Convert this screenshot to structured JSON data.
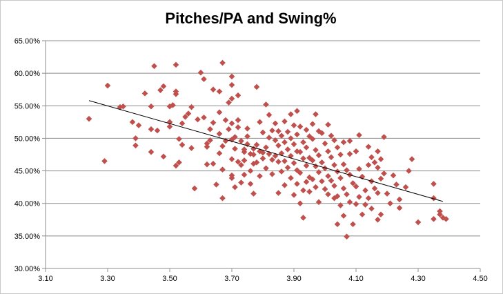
{
  "chart_data": {
    "type": "scatter",
    "title": "Pitches/PA and Swing%",
    "xlabel": "",
    "ylabel": "",
    "xlim": [
      3.1,
      4.5
    ],
    "ylim": [
      30.0,
      65.0
    ],
    "x_ticks": [
      "3.10",
      "3.30",
      "3.50",
      "3.70",
      "3.90",
      "4.10",
      "4.30",
      "4.50"
    ],
    "y_ticks": [
      "30.00%",
      "35.00%",
      "40.00%",
      "45.00%",
      "50.00%",
      "55.00%",
      "60.00%",
      "65.00%"
    ],
    "grid": "horizontal",
    "legend": "none",
    "marker_color": "#c0504d",
    "trendline": {
      "x": [
        3.24,
        4.38
      ],
      "y": [
        55.8,
        40.3
      ],
      "color": "#000000"
    },
    "series": [
      {
        "points": [
          [
            3.24,
            53.0
          ],
          [
            3.29,
            46.5
          ],
          [
            3.3,
            58.1
          ],
          [
            3.34,
            54.8
          ],
          [
            3.35,
            54.9
          ],
          [
            3.38,
            52.5
          ],
          [
            3.39,
            48.9
          ],
          [
            3.39,
            50.0
          ],
          [
            3.4,
            52.0
          ],
          [
            3.42,
            56.9
          ],
          [
            3.44,
            54.9
          ],
          [
            3.44,
            51.4
          ],
          [
            3.44,
            47.9
          ],
          [
            3.45,
            61.1
          ],
          [
            3.46,
            51.2
          ],
          [
            3.47,
            57.4
          ],
          [
            3.48,
            58.0
          ],
          [
            3.48,
            47.2
          ],
          [
            3.5,
            52.5
          ],
          [
            3.5,
            51.8
          ],
          [
            3.5,
            54.9
          ],
          [
            3.51,
            55.1
          ],
          [
            3.52,
            61.3
          ],
          [
            3.52,
            57.2
          ],
          [
            3.52,
            56.8
          ],
          [
            3.52,
            45.8
          ],
          [
            3.53,
            46.3
          ],
          [
            3.53,
            49.9
          ],
          [
            3.54,
            52.3
          ],
          [
            3.54,
            49.0
          ],
          [
            3.55,
            53.3
          ],
          [
            3.56,
            53.8
          ],
          [
            3.57,
            54.8
          ],
          [
            3.57,
            48.5
          ],
          [
            3.58,
            42.3
          ],
          [
            3.59,
            52.9
          ],
          [
            3.6,
            60.1
          ],
          [
            3.61,
            59.1
          ],
          [
            3.61,
            53.2
          ],
          [
            3.62,
            49.2
          ],
          [
            3.62,
            48.7
          ],
          [
            3.62,
            46.0
          ],
          [
            3.63,
            51.4
          ],
          [
            3.63,
            49.7
          ],
          [
            3.64,
            57.5
          ],
          [
            3.64,
            52.4
          ],
          [
            3.64,
            46.1
          ],
          [
            3.65,
            42.9
          ],
          [
            3.66,
            57.2
          ],
          [
            3.66,
            54.0
          ],
          [
            3.66,
            50.7
          ],
          [
            3.66,
            47.7
          ],
          [
            3.67,
            61.6
          ],
          [
            3.67,
            48.8
          ],
          [
            3.67,
            45.2
          ],
          [
            3.67,
            40.8
          ],
          [
            3.68,
            52.8
          ],
          [
            3.68,
            49.6
          ],
          [
            3.69,
            55.5
          ],
          [
            3.69,
            51.4
          ],
          [
            3.7,
            59.5
          ],
          [
            3.7,
            58.2
          ],
          [
            3.7,
            56.1
          ],
          [
            3.7,
            52.3
          ],
          [
            3.7,
            49.8
          ],
          [
            3.7,
            46.8
          ],
          [
            3.7,
            44.3
          ],
          [
            3.7,
            43.9
          ],
          [
            3.71,
            50.2
          ],
          [
            3.71,
            48.4
          ],
          [
            3.71,
            42.5
          ],
          [
            3.72,
            56.6
          ],
          [
            3.72,
            52.8
          ],
          [
            3.72,
            51.7
          ],
          [
            3.72,
            46.4
          ],
          [
            3.73,
            49.6
          ],
          [
            3.73,
            45.9
          ],
          [
            3.73,
            43.2
          ],
          [
            3.74,
            48.3
          ],
          [
            3.74,
            47.9
          ],
          [
            3.74,
            46.6
          ],
          [
            3.74,
            44.4
          ],
          [
            3.75,
            51.5
          ],
          [
            3.75,
            50.3
          ],
          [
            3.75,
            49.1
          ],
          [
            3.76,
            47.6
          ],
          [
            3.76,
            45.0
          ],
          [
            3.76,
            43.0
          ],
          [
            3.77,
            48.4
          ],
          [
            3.77,
            47.5
          ],
          [
            3.77,
            46.1
          ],
          [
            3.77,
            41.5
          ],
          [
            3.78,
            57.9
          ],
          [
            3.78,
            49.0
          ],
          [
            3.78,
            46.3
          ],
          [
            3.79,
            52.5
          ],
          [
            3.79,
            48.0
          ],
          [
            3.79,
            44.2
          ],
          [
            3.8,
            50.9
          ],
          [
            3.8,
            47.8
          ],
          [
            3.8,
            46.9
          ],
          [
            3.81,
            55.2
          ],
          [
            3.81,
            48.6
          ],
          [
            3.81,
            45.4
          ],
          [
            3.82,
            53.6
          ],
          [
            3.82,
            50.1
          ],
          [
            3.82,
            47.6
          ],
          [
            3.83,
            51.2
          ],
          [
            3.83,
            46.7
          ],
          [
            3.83,
            44.5
          ],
          [
            3.84,
            52.3
          ],
          [
            3.84,
            49.7
          ],
          [
            3.84,
            47.3
          ],
          [
            3.85,
            51.1
          ],
          [
            3.85,
            48.9
          ],
          [
            3.85,
            46.4
          ],
          [
            3.85,
            41.6
          ],
          [
            3.86,
            50.4
          ],
          [
            3.86,
            47.7
          ],
          [
            3.86,
            44.9
          ],
          [
            3.87,
            52.6
          ],
          [
            3.87,
            49.4
          ],
          [
            3.87,
            46.5
          ],
          [
            3.87,
            42.8
          ],
          [
            3.88,
            51.0
          ],
          [
            3.88,
            48.3
          ],
          [
            3.88,
            45.5
          ],
          [
            3.89,
            53.7
          ],
          [
            3.89,
            50.0
          ],
          [
            3.89,
            47.3
          ],
          [
            3.89,
            43.9
          ],
          [
            3.9,
            52.0
          ],
          [
            3.9,
            49.1
          ],
          [
            3.9,
            46.2
          ],
          [
            3.9,
            41.3
          ],
          [
            3.91,
            54.2
          ],
          [
            3.91,
            50.6
          ],
          [
            3.91,
            48.0
          ],
          [
            3.91,
            45.1
          ],
          [
            3.91,
            43.0
          ],
          [
            3.92,
            51.8
          ],
          [
            3.92,
            47.9
          ],
          [
            3.92,
            44.7
          ],
          [
            3.92,
            40.0
          ],
          [
            3.93,
            49.4
          ],
          [
            3.93,
            46.9
          ],
          [
            3.93,
            42.0
          ],
          [
            3.93,
            37.8
          ],
          [
            3.94,
            51.3
          ],
          [
            3.94,
            48.6
          ],
          [
            3.94,
            45.8
          ],
          [
            3.94,
            43.3
          ],
          [
            3.95,
            50.3
          ],
          [
            3.95,
            47.0
          ],
          [
            3.95,
            44.0
          ],
          [
            3.95,
            41.8
          ],
          [
            3.96,
            52.2
          ],
          [
            3.96,
            49.9
          ],
          [
            3.96,
            46.6
          ],
          [
            3.96,
            43.7
          ],
          [
            3.97,
            53.7
          ],
          [
            3.97,
            48.2
          ],
          [
            3.97,
            45.7
          ],
          [
            3.97,
            42.5
          ],
          [
            3.98,
            51.1
          ],
          [
            3.98,
            47.4
          ],
          [
            3.98,
            44.8
          ],
          [
            3.98,
            40.2
          ],
          [
            3.99,
            50.8
          ],
          [
            3.99,
            46.3
          ],
          [
            3.99,
            43.4
          ],
          [
            4.0,
            49.2
          ],
          [
            4.0,
            45.4
          ],
          [
            4.0,
            42.2
          ],
          [
            4.01,
            52.1
          ],
          [
            4.01,
            48.0
          ],
          [
            4.01,
            44.2
          ],
          [
            4.01,
            41.4
          ],
          [
            4.02,
            50.4
          ],
          [
            4.02,
            47.1
          ],
          [
            4.02,
            43.5
          ],
          [
            4.03,
            49.7
          ],
          [
            4.03,
            45.9
          ],
          [
            4.03,
            42.7
          ],
          [
            4.03,
            40.8
          ],
          [
            4.04,
            48.6
          ],
          [
            4.04,
            44.9
          ],
          [
            4.04,
            41.1
          ],
          [
            4.04,
            36.8
          ],
          [
            4.05,
            47.5
          ],
          [
            4.05,
            43.9
          ],
          [
            4.05,
            39.7
          ],
          [
            4.06,
            49.4
          ],
          [
            4.06,
            46.0
          ],
          [
            4.06,
            42.3
          ],
          [
            4.06,
            38.1
          ],
          [
            4.07,
            45.1
          ],
          [
            4.07,
            41.4
          ],
          [
            4.07,
            34.9
          ],
          [
            4.08,
            49.6
          ],
          [
            4.08,
            47.6
          ],
          [
            4.08,
            44.4
          ],
          [
            4.08,
            40.2
          ],
          [
            4.09,
            43.1
          ],
          [
            4.09,
            36.8
          ],
          [
            4.1,
            48.0
          ],
          [
            4.1,
            42.6
          ],
          [
            4.1,
            39.9
          ],
          [
            4.11,
            50.5
          ],
          [
            4.11,
            45.3
          ],
          [
            4.11,
            41.0
          ],
          [
            4.12,
            44.1
          ],
          [
            4.12,
            38.3
          ],
          [
            4.13,
            42.0
          ],
          [
            4.13,
            39.8
          ],
          [
            4.14,
            48.7
          ],
          [
            4.14,
            45.9
          ],
          [
            4.14,
            40.8
          ],
          [
            4.15,
            47.1
          ],
          [
            4.15,
            43.4
          ],
          [
            4.15,
            39.2
          ],
          [
            4.16,
            46.3
          ],
          [
            4.16,
            42.3
          ],
          [
            4.17,
            48.0
          ],
          [
            4.17,
            45.5
          ],
          [
            4.17,
            41.6
          ],
          [
            4.17,
            37.5
          ],
          [
            4.18,
            46.8
          ],
          [
            4.18,
            43.8
          ],
          [
            4.18,
            38.3
          ],
          [
            4.19,
            50.2
          ],
          [
            4.19,
            44.6
          ],
          [
            4.2,
            41.5
          ],
          [
            4.21,
            40.0
          ],
          [
            4.22,
            44.3
          ],
          [
            4.23,
            42.9
          ],
          [
            4.24,
            39.3
          ],
          [
            4.24,
            40.6
          ],
          [
            4.26,
            42.5
          ],
          [
            4.27,
            45.0
          ],
          [
            4.28,
            46.8
          ],
          [
            4.3,
            37.1
          ],
          [
            4.35,
            43.0
          ],
          [
            4.35,
            40.8
          ],
          [
            4.35,
            37.6
          ],
          [
            4.37,
            38.8
          ],
          [
            4.37,
            38.3
          ],
          [
            4.38,
            37.8
          ],
          [
            4.39,
            37.6
          ]
        ]
      }
    ]
  }
}
